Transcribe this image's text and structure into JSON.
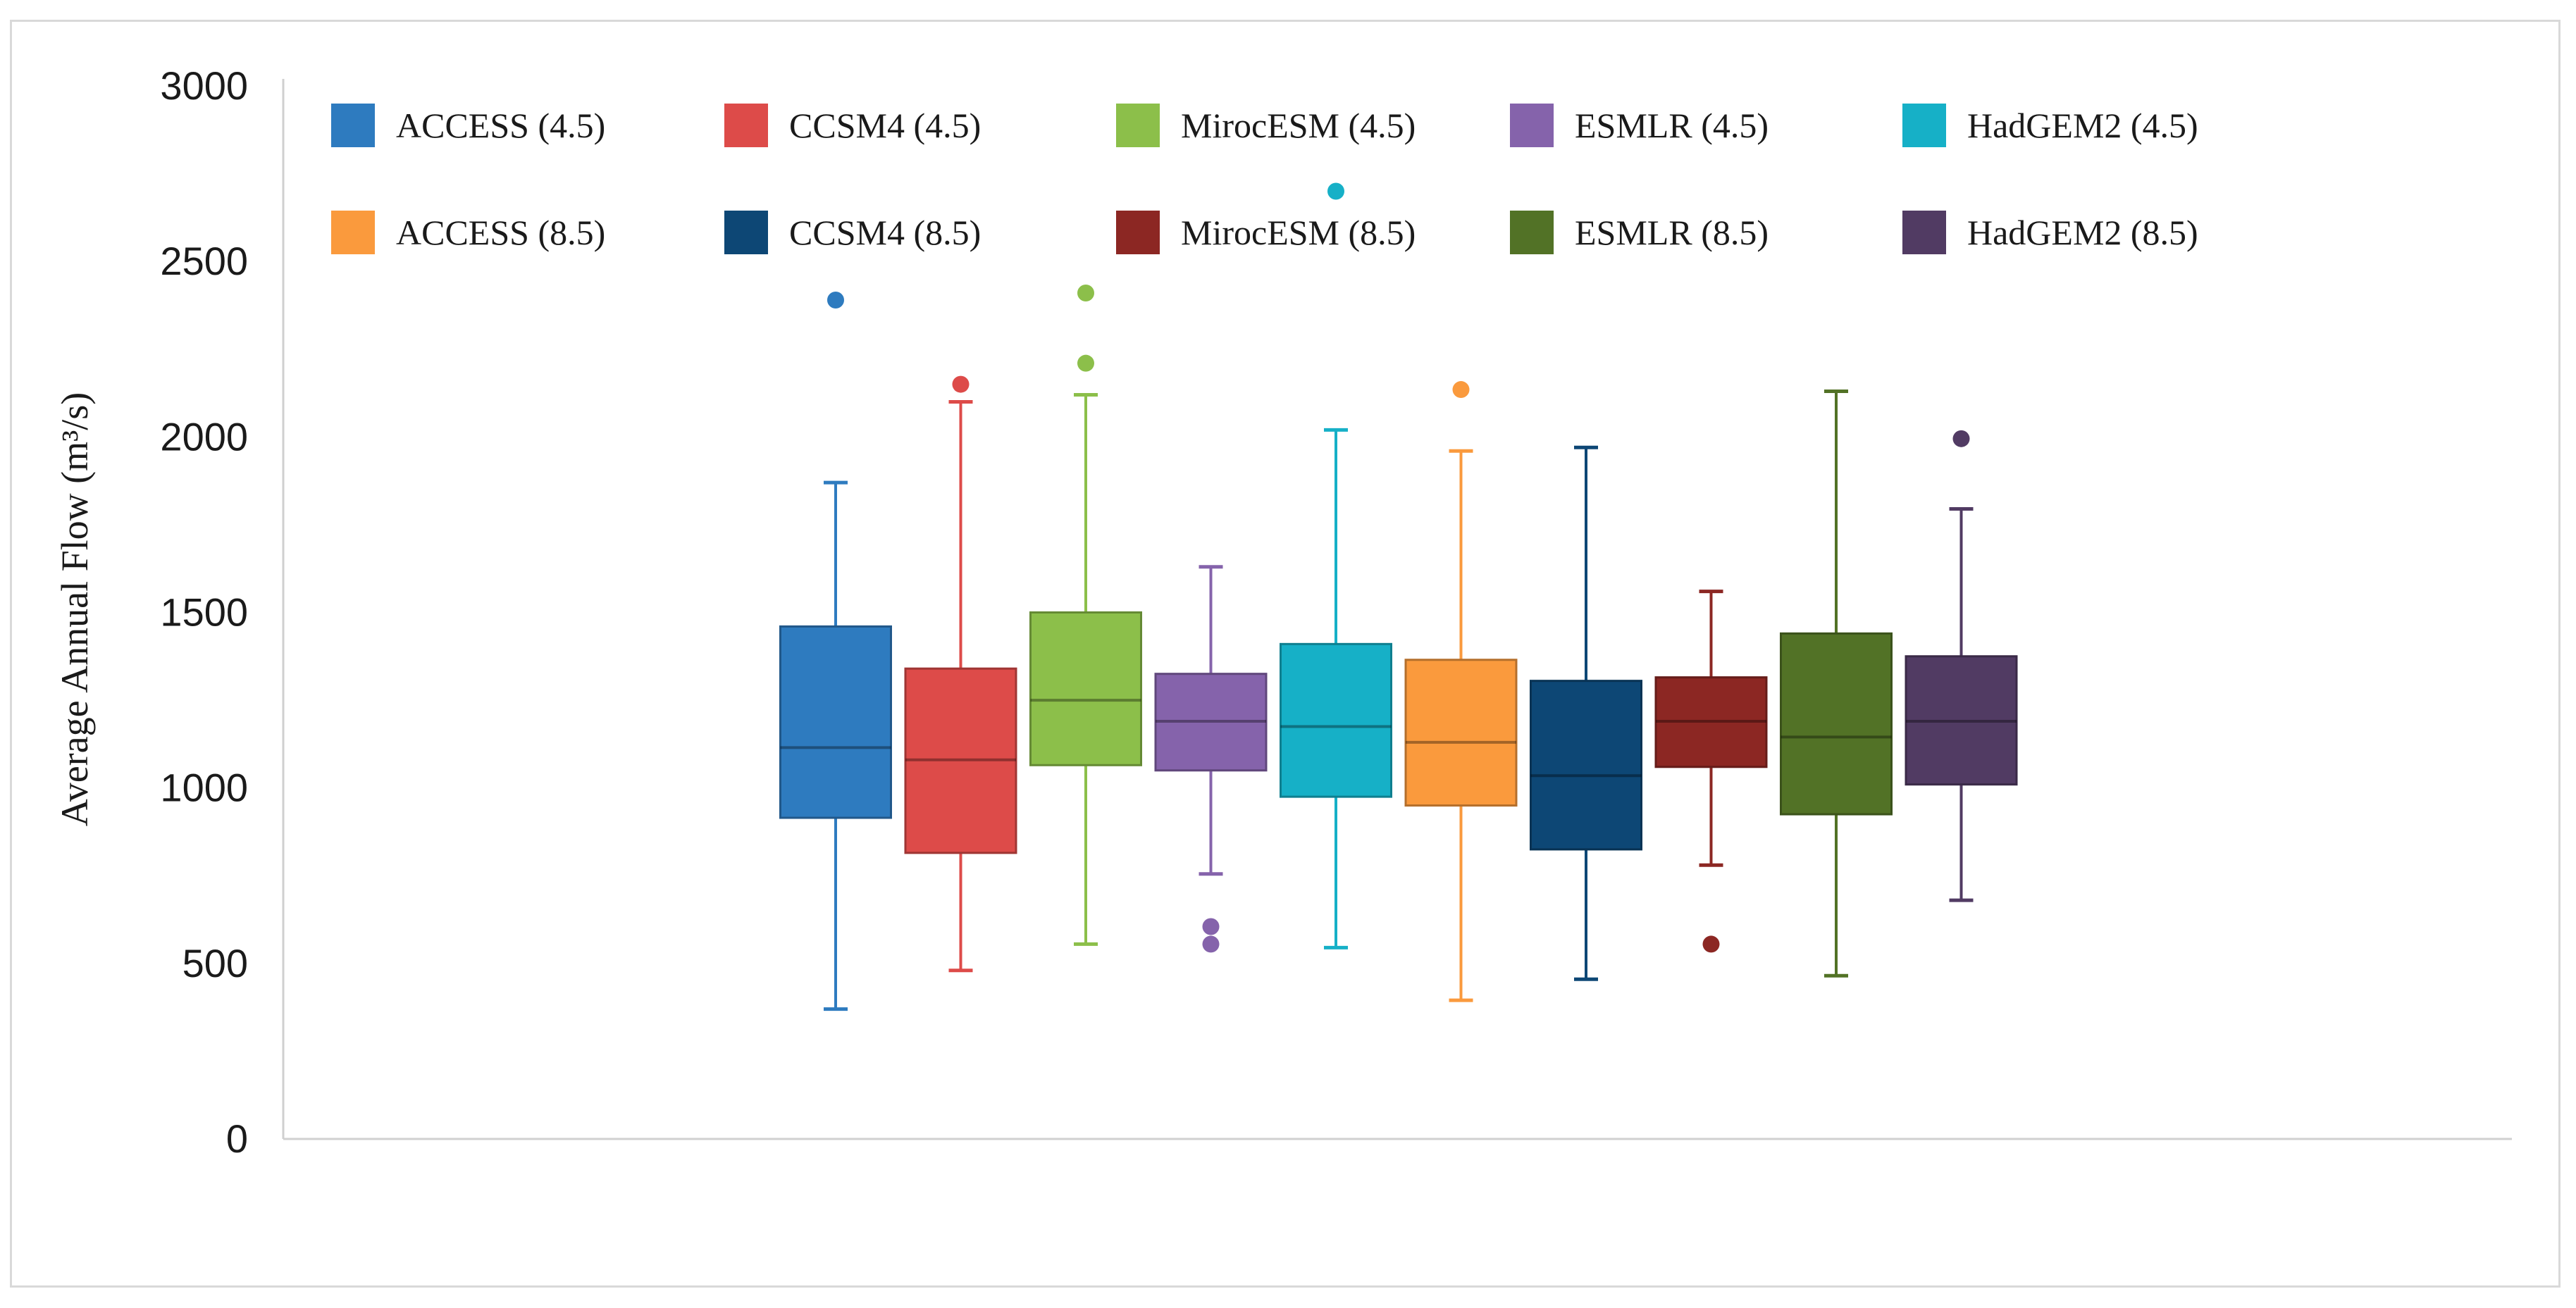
{
  "chart_data": {
    "type": "boxplot",
    "title": "",
    "xlabel": "",
    "ylabel": "Average Annual Flow (m³/s)",
    "ylim": [
      0,
      3000
    ],
    "yticks": [
      0,
      500,
      1000,
      1500,
      2000,
      2500,
      3000
    ],
    "yticklabels": [
      "0",
      "500",
      "1000",
      "1500",
      "2000",
      "2500",
      "3000"
    ],
    "grid": false,
    "legend_position": "top",
    "series": [
      {
        "name": "ACCESS (4.5)",
        "color": "#2e7bbf",
        "min": 370,
        "q1": 915,
        "median": 1115,
        "q3": 1460,
        "max": 1870,
        "outliers": [
          2390
        ]
      },
      {
        "name": "CCSM4 (4.5)",
        "color": "#dd4b49",
        "min": 480,
        "q1": 815,
        "median": 1080,
        "q3": 1340,
        "max": 2100,
        "outliers": [
          2150
        ]
      },
      {
        "name": "MirocESM (4.5)",
        "color": "#8cbf4a",
        "min": 555,
        "q1": 1065,
        "median": 1250,
        "q3": 1500,
        "max": 2120,
        "outliers": [
          2210,
          2410
        ]
      },
      {
        "name": "ESMLR (4.5)",
        "color": "#8563ab",
        "min": 755,
        "q1": 1050,
        "median": 1190,
        "q3": 1325,
        "max": 1630,
        "outliers": [
          555,
          605
        ]
      },
      {
        "name": "HadGEM2 (4.5)",
        "color": "#16b0c7",
        "min": 545,
        "q1": 975,
        "median": 1175,
        "q3": 1410,
        "max": 2020,
        "outliers": [
          2700
        ]
      },
      {
        "name": "ACCESS (8.5)",
        "color": "#fa9a3d",
        "min": 395,
        "q1": 950,
        "median": 1130,
        "q3": 1365,
        "max": 1960,
        "outliers": [
          2135
        ]
      },
      {
        "name": "CCSM4 (8.5)",
        "color": "#0d4775",
        "min": 455,
        "q1": 825,
        "median": 1035,
        "q3": 1305,
        "max": 1970,
        "outliers": []
      },
      {
        "name": "MirocESM (8.5)",
        "color": "#8c2723",
        "min": 780,
        "q1": 1060,
        "median": 1190,
        "q3": 1315,
        "max": 1560,
        "outliers": [
          555
        ]
      },
      {
        "name": "ESMLR (8.5)",
        "color": "#527226",
        "min": 465,
        "q1": 925,
        "median": 1145,
        "q3": 1440,
        "max": 2130,
        "outliers": []
      },
      {
        "name": "HadGEM2 (8.5)",
        "color": "#513b63",
        "min": 680,
        "q1": 1010,
        "median": 1190,
        "q3": 1375,
        "max": 1795,
        "outliers": [
          1995
        ]
      }
    ]
  }
}
